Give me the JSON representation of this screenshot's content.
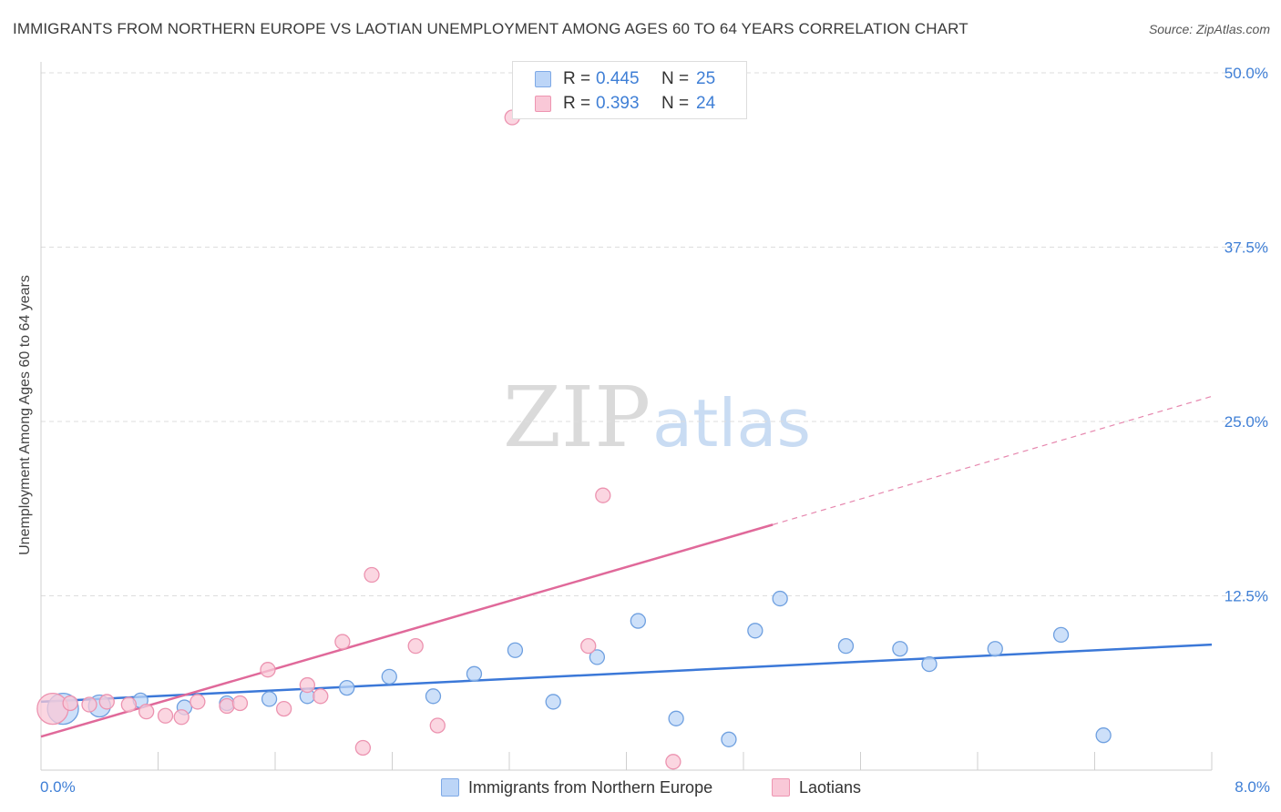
{
  "title": "IMMIGRANTS FROM NORTHERN EUROPE VS LAOTIAN UNEMPLOYMENT AMONG AGES 60 TO 64 YEARS CORRELATION CHART",
  "source": "Source: ZipAtlas.com",
  "watermark": {
    "zip": "ZIP",
    "atlas": "atlas"
  },
  "legend_top": [
    {
      "r_label": "R =",
      "r_value": "0.445",
      "n_label": "N =",
      "n_value": "25"
    },
    {
      "r_label": "R =",
      "r_value": "0.393",
      "n_label": "N =",
      "n_value": "24"
    }
  ],
  "legend_bottom": [
    "Immigrants from Northern Europe",
    "Laotians"
  ],
  "colors": {
    "blue_fill": "#bcd5f7",
    "blue_stroke": "#6fa0e0",
    "blue_line": "#3b78d8",
    "pink_fill": "#f9c8d7",
    "pink_stroke": "#ec93b0",
    "pink_line": "#e0699a",
    "tick_label": "#3f7fd6",
    "grid": "#dddddd"
  },
  "chart_data": {
    "type": "scatter",
    "title": "IMMIGRANTS FROM NORTHERN EUROPE VS LAOTIAN UNEMPLOYMENT AMONG AGES 60 TO 64 YEARS CORRELATION CHART",
    "xlabel": "",
    "ylabel": "Unemployment Among Ages 60 to 64 years",
    "xlim": [
      0,
      8.0
    ],
    "ylim": [
      0,
      52
    ],
    "x_tick_labels": [
      {
        "value": 0,
        "label": "0.0%"
      },
      {
        "value": 8.0,
        "label": "8.0%"
      }
    ],
    "y_tick_labels": [
      {
        "value": 12.5,
        "label": "12.5%"
      },
      {
        "value": 25.0,
        "label": "25.0%"
      },
      {
        "value": 37.5,
        "label": "37.5%"
      },
      {
        "value": 50.0,
        "label": "50.0%"
      }
    ],
    "series": [
      {
        "name": "Immigrants from Northern Europe",
        "color": "blue",
        "points": [
          {
            "x": 0.15,
            "y": 4.4,
            "size": "large"
          },
          {
            "x": 0.4,
            "y": 4.6,
            "size": "medium"
          },
          {
            "x": 0.68,
            "y": 5.0
          },
          {
            "x": 0.98,
            "y": 4.5
          },
          {
            "x": 1.27,
            "y": 4.8
          },
          {
            "x": 1.56,
            "y": 5.1
          },
          {
            "x": 1.82,
            "y": 5.3
          },
          {
            "x": 2.09,
            "y": 5.9
          },
          {
            "x": 2.38,
            "y": 6.7
          },
          {
            "x": 2.68,
            "y": 5.3
          },
          {
            "x": 2.96,
            "y": 6.9
          },
          {
            "x": 3.24,
            "y": 8.6
          },
          {
            "x": 3.5,
            "y": 4.9
          },
          {
            "x": 3.8,
            "y": 8.1
          },
          {
            "x": 4.08,
            "y": 10.7
          },
          {
            "x": 4.34,
            "y": 3.7
          },
          {
            "x": 4.7,
            "y": 2.2
          },
          {
            "x": 4.88,
            "y": 10.0
          },
          {
            "x": 5.05,
            "y": 12.3
          },
          {
            "x": 5.5,
            "y": 8.9
          },
          {
            "x": 5.87,
            "y": 8.7
          },
          {
            "x": 6.07,
            "y": 7.6
          },
          {
            "x": 6.52,
            "y": 8.7
          },
          {
            "x": 6.97,
            "y": 9.7
          },
          {
            "x": 7.26,
            "y": 2.5
          }
        ],
        "trend": {
          "x0": 0.0,
          "y0": 4.9,
          "x1": 8.0,
          "y1": 9.0
        }
      },
      {
        "name": "Laotians",
        "color": "pink",
        "points": [
          {
            "x": 0.08,
            "y": 4.4,
            "size": "large"
          },
          {
            "x": 0.2,
            "y": 4.8
          },
          {
            "x": 0.33,
            "y": 4.7
          },
          {
            "x": 0.45,
            "y": 4.9
          },
          {
            "x": 0.6,
            "y": 4.7
          },
          {
            "x": 0.72,
            "y": 4.2
          },
          {
            "x": 0.85,
            "y": 3.9
          },
          {
            "x": 0.96,
            "y": 3.8
          },
          {
            "x": 1.07,
            "y": 4.9
          },
          {
            "x": 1.27,
            "y": 4.6
          },
          {
            "x": 1.36,
            "y": 4.8
          },
          {
            "x": 1.55,
            "y": 7.2
          },
          {
            "x": 1.66,
            "y": 4.4
          },
          {
            "x": 1.82,
            "y": 6.1
          },
          {
            "x": 1.91,
            "y": 5.3
          },
          {
            "x": 2.06,
            "y": 9.2
          },
          {
            "x": 2.2,
            "y": 1.6
          },
          {
            "x": 2.26,
            "y": 14.0
          },
          {
            "x": 2.56,
            "y": 8.9
          },
          {
            "x": 2.71,
            "y": 3.2
          },
          {
            "x": 3.22,
            "y": 46.8
          },
          {
            "x": 3.74,
            "y": 8.9
          },
          {
            "x": 3.84,
            "y": 19.7
          },
          {
            "x": 4.32,
            "y": 0.6
          }
        ],
        "trend": {
          "x0": 0.0,
          "y0": 2.4,
          "x1": 5.0,
          "y1": 17.6,
          "dashed_to_x": 8.0,
          "dashed_to_y": 26.8
        }
      }
    ],
    "grid": true,
    "legend": "top-center"
  }
}
